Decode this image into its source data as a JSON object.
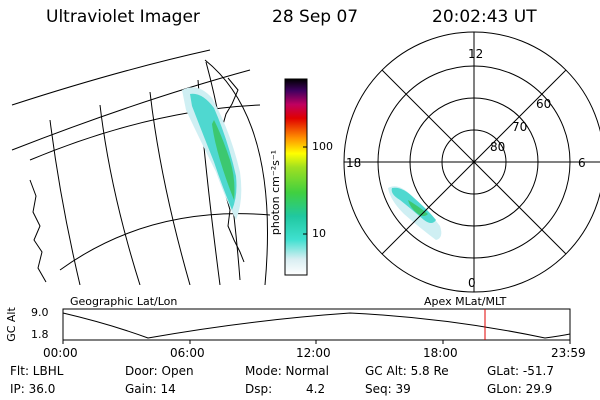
{
  "header": {
    "instrument": "Ultraviolet Imager",
    "date": "28 Sep 07",
    "time": "20:02:43 UT"
  },
  "colorbar": {
    "label": "photon cm⁻²s⁻¹",
    "ticks": [
      "100",
      "10"
    ],
    "scale": "log"
  },
  "polar": {
    "mlt_labels": {
      "top": "12",
      "left": "18",
      "right": "6",
      "bottom": "0"
    },
    "lat_labels": [
      "60",
      "70",
      "80"
    ]
  },
  "panels": {
    "left_label": "Geographic Lat/Lon",
    "right_label": "Apex MLat/MLT"
  },
  "altitude_plot": {
    "ylabel": "GC Alt",
    "yticks": [
      "9.0",
      "1.8"
    ],
    "xticks": [
      "00:00",
      "06:00",
      "12:00",
      "18:00",
      "23:59"
    ],
    "current_time_marker": "20:02"
  },
  "info": {
    "flt": "Flt: LBHL",
    "ip": "IP: 36.0",
    "door": "Door: Open",
    "gain": "Gain: 14",
    "mode": "Mode: Normal",
    "dsp_label": "Dsp:",
    "dsp_value": "4.2",
    "gc_alt": "GC Alt: 5.8 Re",
    "seq": "Seq: 39",
    "glat": "GLat: -51.7",
    "glon": "GLon: 29.9"
  },
  "colors": {
    "marker": "#e00000"
  }
}
